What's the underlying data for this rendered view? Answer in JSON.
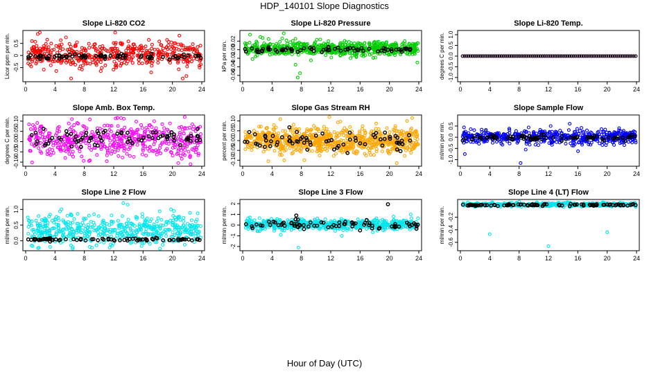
{
  "figure": {
    "title": "HDP_140101  Slope Diagnostics",
    "xlabel": "Hour of Day (UTC)"
  },
  "chart_data": [
    {
      "type": "scatter",
      "title": "Slope Li-820 CO2",
      "ylabel": "Licor ppm per min.",
      "xlim": [
        0,
        24
      ],
      "xticks": [
        0,
        4,
        8,
        12,
        16,
        20,
        24
      ],
      "ylim": [
        -1.0,
        0.95
      ],
      "yticks": [
        -0.5,
        0,
        0.5
      ],
      "ytick_labels": [
        "-0.5",
        "0",
        "0.5"
      ],
      "series": [
        {
          "color": "#ff0000",
          "kind": "scatter",
          "spread": 0.55,
          "center": 0.05,
          "n": 480,
          "seed": 11,
          "outliers": [
            [
              5.5,
              0.75
            ],
            [
              12.2,
              0.95
            ],
            [
              6.2,
              -0.95
            ],
            [
              21.4,
              -0.95
            ],
            [
              21.9,
              -0.85
            ],
            [
              17.1,
              -0.7
            ]
          ]
        },
        {
          "color": "#000000",
          "kind": "ref",
          "spread": 0.12,
          "center": -0.05,
          "n": 75,
          "seed": 12
        }
      ]
    },
    {
      "type": "scatter",
      "title": "Slope Li-820 Pressure",
      "ylabel": "kPa per min.",
      "xlim": [
        0,
        24
      ],
      "xticks": [
        0,
        4,
        8,
        12,
        16,
        20,
        24
      ],
      "ylim": [
        -0.07,
        0.04
      ],
      "yticks": [
        -0.06,
        -0.04,
        -0.02,
        0,
        0.02
      ],
      "ytick_labels": [
        "-0.06",
        "-0.04",
        "-0.02",
        "0.00",
        "0.02"
      ],
      "series": [
        {
          "color": "#00cc00",
          "kind": "band",
          "spread": 0.018,
          "center": 0.003,
          "n": 650,
          "seed": 21,
          "outliers": [
            [
              7.5,
              -0.065
            ],
            [
              7.8,
              -0.055
            ],
            [
              5.6,
              0.038
            ],
            [
              7.2,
              -0.035
            ],
            [
              9.3,
              -0.025
            ],
            [
              23.8,
              -0.03
            ],
            [
              1.0,
              0.035
            ]
          ]
        },
        {
          "color": "#000000",
          "kind": "ref",
          "spread": 0.006,
          "center": 0.0,
          "n": 70,
          "seed": 22
        }
      ]
    },
    {
      "type": "scatter",
      "title": "Slope Li-820 Temp.",
      "ylabel": "degrees C per min.",
      "xlim": [
        0,
        24
      ],
      "xticks": [
        0,
        4,
        8,
        12,
        16,
        20,
        24
      ],
      "ylim": [
        -1.1,
        1.1
      ],
      "yticks": [
        -1.0,
        -0.5,
        0,
        0.5,
        1.0
      ],
      "ytick_labels": [
        "-1.0",
        "-0.5",
        "0.0",
        "0.5",
        "1.0"
      ],
      "series": [
        {
          "color": "#ff00ff",
          "kind": "line",
          "spread": 0.0,
          "center": 0.0,
          "n": 90,
          "seed": 31
        },
        {
          "color": "#000000",
          "kind": "line",
          "spread": 0.0,
          "center": 0.0,
          "n": 90,
          "seed": 32
        }
      ]
    },
    {
      "type": "scatter",
      "title": "Slope Amb. Box Temp.",
      "ylabel": "degrees C per min.",
      "xlim": [
        0,
        24
      ],
      "xticks": [
        0,
        4,
        8,
        12,
        16,
        20,
        24
      ],
      "ylim": [
        -0.11,
        0.12
      ],
      "yticks": [
        -0.1,
        -0.05,
        0,
        0.05,
        0.1
      ],
      "ytick_labels": [
        "-0.10",
        "-0.05",
        "0.00",
        "0.05",
        "0.10"
      ],
      "series": [
        {
          "color": "#ff00ff",
          "kind": "scatter",
          "spread": 0.085,
          "center": 0.005,
          "n": 520,
          "seed": 41,
          "outliers": [
            [
              13.0,
              0.115
            ],
            [
              6.3,
              0.11
            ],
            [
              20.8,
              -0.105
            ]
          ]
        },
        {
          "color": "#000000",
          "kind": "ref",
          "spread": 0.045,
          "center": 0.02,
          "n": 75,
          "seed": 42
        }
      ]
    },
    {
      "type": "scatter",
      "title": "Slope Gas Stream RH",
      "ylabel": "percent per min.",
      "xlim": [
        0,
        24
      ],
      "xticks": [
        0,
        4,
        8,
        12,
        16,
        20,
        24
      ],
      "ylim": [
        -0.12,
        0.12
      ],
      "yticks": [
        -0.1,
        -0.05,
        0,
        0.05,
        0.1
      ],
      "ytick_labels": [
        "-0.10",
        "-0.05",
        "0.00",
        "0.05",
        "0.10"
      ],
      "series": [
        {
          "color": "#ffa500",
          "kind": "band",
          "spread": 0.07,
          "center": 0.0,
          "n": 800,
          "seed": 51,
          "outliers": [
            [
              23.1,
              0.115
            ],
            [
              22.4,
              0.1
            ],
            [
              21.0,
              -0.115
            ],
            [
              8.4,
              -0.1
            ],
            [
              3.5,
              -0.105
            ]
          ]
        },
        {
          "color": "#000000",
          "kind": "ref",
          "spread": 0.05,
          "center": 0.0,
          "n": 70,
          "seed": 52
        }
      ]
    },
    {
      "type": "scatter",
      "title": "Slope Sample Flow",
      "ylabel": "ml/min per min.",
      "xlim": [
        0,
        24
      ],
      "xticks": [
        0,
        4,
        8,
        12,
        16,
        20,
        24
      ],
      "ylim": [
        -1.2,
        0.9
      ],
      "yticks": [
        -1.0,
        -0.5,
        0,
        0.5
      ],
      "ytick_labels": [
        "-1.0",
        "-0.5",
        "0.0",
        "0.5"
      ],
      "series": [
        {
          "color": "#0000ff",
          "kind": "scatter",
          "spread": 0.32,
          "center": 0.02,
          "n": 560,
          "seed": 61,
          "outliers": [
            [
              8.2,
              -1.15
            ],
            [
              8.9,
              -0.55
            ],
            [
              14.9,
              0.6
            ],
            [
              0.6,
              -0.75
            ],
            [
              12.3,
              0.5
            ]
          ]
        },
        {
          "color": "#000000",
          "kind": "ref",
          "spread": 0.12,
          "center": -0.02,
          "n": 75,
          "seed": 62
        }
      ]
    },
    {
      "type": "scatter",
      "title": "Slope Line 2 Flow",
      "ylabel": "ml/min per min.",
      "xlim": [
        0,
        24
      ],
      "xticks": [
        0,
        4,
        8,
        12,
        16,
        20,
        24
      ],
      "ylim": [
        -0.25,
        1.25
      ],
      "yticks": [
        0,
        0.5,
        1.0
      ],
      "ytick_labels": [
        "0.0",
        "0.5",
        "1.0"
      ],
      "series": [
        {
          "color": "#00e5ee",
          "kind": "scatter",
          "spread": 0.45,
          "center": 0.35,
          "n": 520,
          "seed": 71,
          "outliers": [
            [
              13.3,
              1.2
            ],
            [
              13.9,
              1.15
            ],
            [
              19.8,
              1.0
            ],
            [
              20.2,
              0.95
            ],
            [
              11.8,
              -0.15
            ]
          ]
        },
        {
          "color": "#000000",
          "kind": "ref",
          "spread": 0.04,
          "center": 0.04,
          "n": 80,
          "seed": 72
        }
      ]
    },
    {
      "type": "scatter",
      "title": "Slope Line 3 Flow",
      "ylabel": "ml/min per min.",
      "xlim": [
        0,
        24
      ],
      "xticks": [
        0,
        4,
        8,
        12,
        16,
        20,
        24
      ],
      "ylim": [
        -2.2,
        2.2
      ],
      "yticks": [
        -2,
        -1,
        0,
        1,
        2
      ],
      "ytick_labels": [
        "-2",
        "-1",
        "0",
        "1",
        "2"
      ],
      "series": [
        {
          "color": "#00e5ee",
          "kind": "band",
          "spread": 0.55,
          "center": 0.05,
          "n": 620,
          "seed": 81,
          "outliers": [
            [
              7.6,
              -2.1
            ],
            [
              13.5,
              -1.0
            ],
            [
              5.2,
              -0.9
            ],
            [
              22.9,
              1.0
            ]
          ]
        },
        {
          "color": "#000000",
          "kind": "ref",
          "spread": 0.4,
          "center": 0.0,
          "n": 75,
          "seed": 82,
          "outliers": [
            [
              19.8,
              1.95
            ],
            [
              7.3,
              0.9
            ]
          ]
        }
      ]
    },
    {
      "type": "scatter",
      "title": "Slope Line 4 (LT) Flow",
      "ylabel": "ml/min per min.",
      "xlim": [
        0,
        24
      ],
      "xticks": [
        0,
        4,
        8,
        12,
        16,
        20,
        24
      ],
      "ylim": [
        -0.7,
        0.05
      ],
      "yticks": [
        -0.6,
        -0.4,
        -0.2
      ],
      "ytick_labels": [
        "-0.6",
        "-0.4",
        "-0.2"
      ],
      "series": [
        {
          "color": "#00e5ee",
          "kind": "band",
          "spread": 0.035,
          "center": 0.0,
          "n": 420,
          "seed": 91,
          "outliers": [
            [
              4.0,
              -0.47
            ],
            [
              20.0,
              -0.44
            ],
            [
              12.0,
              -0.66
            ]
          ]
        },
        {
          "color": "#000000",
          "kind": "ref",
          "spread": 0.015,
          "center": -0.005,
          "n": 90,
          "seed": 92
        }
      ]
    }
  ]
}
